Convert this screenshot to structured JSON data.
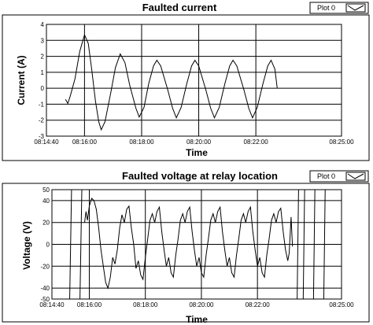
{
  "chart_data": [
    {
      "type": "line",
      "title": "Faulted current",
      "xlabel": "Time",
      "ylabel": "Current (A)",
      "legend": {
        "entries": [
          "Plot 0"
        ],
        "placement": "top-right"
      },
      "grid": true,
      "xlim": [
        "08:14:40",
        "08:25:00"
      ],
      "ylim": [
        -3.0,
        4.0
      ],
      "x_ticks": [
        "08:14:40",
        "08:16:00",
        "08:18:00",
        "08:20:00",
        "08:22:00",
        "08:25:00"
      ],
      "y_ticks": [
        "4",
        "3",
        "2",
        "1",
        "0",
        "-1",
        "-2",
        "-3"
      ],
      "series": [
        {
          "color": "#000000",
          "points": [
            [
              "08:15:20",
              -0.7
            ],
            [
              "08:15:25",
              -0.95
            ],
            [
              "08:15:30",
              -0.5
            ],
            [
              "08:15:40",
              0.6
            ],
            [
              "08:15:50",
              2.3
            ],
            [
              "08:16:00",
              3.35
            ],
            [
              "08:16:08",
              2.8
            ],
            [
              "08:16:15",
              1.2
            ],
            [
              "08:16:23",
              -0.8
            ],
            [
              "08:16:30",
              -2.1
            ],
            [
              "08:16:35",
              -2.6
            ],
            [
              "08:16:43",
              -2.1
            ],
            [
              "08:16:55",
              -0.3
            ],
            [
              "08:17:05",
              1.3
            ],
            [
              "08:17:15",
              2.15
            ],
            [
              "08:17:25",
              1.6
            ],
            [
              "08:17:35",
              0.2
            ],
            [
              "08:17:48",
              -1.25
            ],
            [
              "08:17:55",
              -1.8
            ],
            [
              "08:18:05",
              -1.2
            ],
            [
              "08:18:15",
              0.3
            ],
            [
              "08:18:25",
              1.4
            ],
            [
              "08:18:32",
              1.75
            ],
            [
              "08:18:40",
              1.4
            ],
            [
              "08:18:55",
              -0.1
            ],
            [
              "08:19:05",
              -1.25
            ],
            [
              "08:19:13",
              -1.85
            ],
            [
              "08:19:23",
              -1.2
            ],
            [
              "08:19:35",
              0.3
            ],
            [
              "08:19:45",
              1.4
            ],
            [
              "08:19:52",
              1.75
            ],
            [
              "08:20:00",
              1.4
            ],
            [
              "08:20:15",
              -0.1
            ],
            [
              "08:20:25",
              -1.25
            ],
            [
              "08:20:33",
              -1.85
            ],
            [
              "08:20:43",
              -1.2
            ],
            [
              "08:20:55",
              0.3
            ],
            [
              "08:21:05",
              1.4
            ],
            [
              "08:21:12",
              1.75
            ],
            [
              "08:21:20",
              1.4
            ],
            [
              "08:21:35",
              -0.1
            ],
            [
              "08:21:45",
              -1.25
            ],
            [
              "08:21:53",
              -1.85
            ],
            [
              "08:22:03",
              -1.2
            ],
            [
              "08:22:15",
              0.3
            ],
            [
              "08:22:25",
              1.4
            ],
            [
              "08:22:32",
              1.75
            ],
            [
              "08:22:40",
              1.2
            ],
            [
              "08:22:45",
              0.0
            ]
          ]
        }
      ]
    },
    {
      "type": "line",
      "title": "Faulted voltage at relay location",
      "xlabel": "Time",
      "ylabel": "Voltage (V)",
      "legend": {
        "entries": [
          "Plot 0"
        ],
        "placement": "top-right"
      },
      "grid": true,
      "xlim": [
        "08:14:40",
        "08:25:00"
      ],
      "ylim": [
        -50,
        50
      ],
      "x_ticks": [
        "08:14:40",
        "08:16:00",
        "08:18:00",
        "08:20:00",
        "08:22:00",
        "08:25:00"
      ],
      "y_ticks": [
        "50",
        "40",
        "20",
        "0",
        "-20",
        "-40",
        "-50"
      ],
      "series": [
        {
          "color": "#000000",
          "points": [
            [
              "08:15:50",
              20
            ],
            [
              "08:15:53",
              30
            ],
            [
              "08:15:56",
              22
            ],
            [
              "08:16:00",
              35
            ],
            [
              "08:16:05",
              42
            ],
            [
              "08:16:10",
              40
            ],
            [
              "08:16:15",
              32
            ],
            [
              "08:16:20",
              15
            ],
            [
              "08:16:25",
              -5
            ],
            [
              "08:16:30",
              -20
            ],
            [
              "08:16:35",
              -35
            ],
            [
              "08:16:40",
              -40
            ],
            [
              "08:16:45",
              -30
            ],
            [
              "08:16:50",
              -12
            ],
            [
              "08:16:55",
              -18
            ],
            [
              "08:17:00",
              -5
            ],
            [
              "08:17:05",
              15
            ],
            [
              "08:17:10",
              27
            ],
            [
              "08:17:15",
              20
            ],
            [
              "08:17:20",
              32
            ],
            [
              "08:17:25",
              35
            ],
            [
              "08:17:30",
              15
            ],
            [
              "08:17:35",
              0
            ],
            [
              "08:17:40",
              -22
            ],
            [
              "08:17:45",
              -15
            ],
            [
              "08:17:50",
              -28
            ],
            [
              "08:17:55",
              -32
            ],
            [
              "08:18:00",
              -12
            ],
            [
              "08:18:05",
              5
            ],
            [
              "08:18:10",
              22
            ],
            [
              "08:18:15",
              28
            ],
            [
              "08:18:20",
              20
            ],
            [
              "08:18:25",
              30
            ],
            [
              "08:18:30",
              34
            ],
            [
              "08:18:35",
              12
            ],
            [
              "08:18:40",
              -5
            ],
            [
              "08:18:45",
              -20
            ],
            [
              "08:18:50",
              -12
            ],
            [
              "08:18:55",
              -26
            ],
            [
              "08:19:00",
              -30
            ],
            [
              "08:19:05",
              -10
            ],
            [
              "08:19:10",
              5
            ],
            [
              "08:19:15",
              22
            ],
            [
              "08:19:20",
              28
            ],
            [
              "08:19:25",
              20
            ],
            [
              "08:19:30",
              30
            ],
            [
              "08:19:35",
              34
            ],
            [
              "08:19:40",
              12
            ],
            [
              "08:19:45",
              -5
            ],
            [
              "08:19:50",
              -20
            ],
            [
              "08:19:55",
              -12
            ],
            [
              "08:20:00",
              -26
            ],
            [
              "08:20:05",
              -30
            ],
            [
              "08:20:10",
              -10
            ],
            [
              "08:20:15",
              5
            ],
            [
              "08:20:20",
              22
            ],
            [
              "08:20:25",
              28
            ],
            [
              "08:20:30",
              20
            ],
            [
              "08:20:35",
              30
            ],
            [
              "08:20:40",
              34
            ],
            [
              "08:20:45",
              12
            ],
            [
              "08:20:50",
              -5
            ],
            [
              "08:20:55",
              -20
            ],
            [
              "08:21:00",
              -12
            ],
            [
              "08:21:05",
              -26
            ],
            [
              "08:21:10",
              -30
            ],
            [
              "08:21:15",
              -10
            ],
            [
              "08:21:20",
              5
            ],
            [
              "08:21:25",
              22
            ],
            [
              "08:21:30",
              28
            ],
            [
              "08:21:35",
              20
            ],
            [
              "08:21:40",
              30
            ],
            [
              "08:21:45",
              34
            ],
            [
              "08:21:50",
              12
            ],
            [
              "08:21:55",
              -5
            ],
            [
              "08:22:00",
              -20
            ],
            [
              "08:22:05",
              -12
            ],
            [
              "08:22:10",
              -26
            ],
            [
              "08:22:15",
              -30
            ],
            [
              "08:22:20",
              -10
            ],
            [
              "08:22:25",
              5
            ],
            [
              "08:22:30",
              22
            ],
            [
              "08:22:35",
              28
            ],
            [
              "08:22:40",
              20
            ],
            [
              "08:22:45",
              30
            ],
            [
              "08:22:50",
              33
            ],
            [
              "08:22:55",
              12
            ],
            [
              "08:23:00",
              -5
            ],
            [
              "08:23:05",
              -15
            ],
            [
              "08:23:08",
              -8
            ],
            [
              "08:23:12",
              25
            ],
            [
              "08:23:15",
              -2
            ]
          ]
        }
      ]
    }
  ]
}
